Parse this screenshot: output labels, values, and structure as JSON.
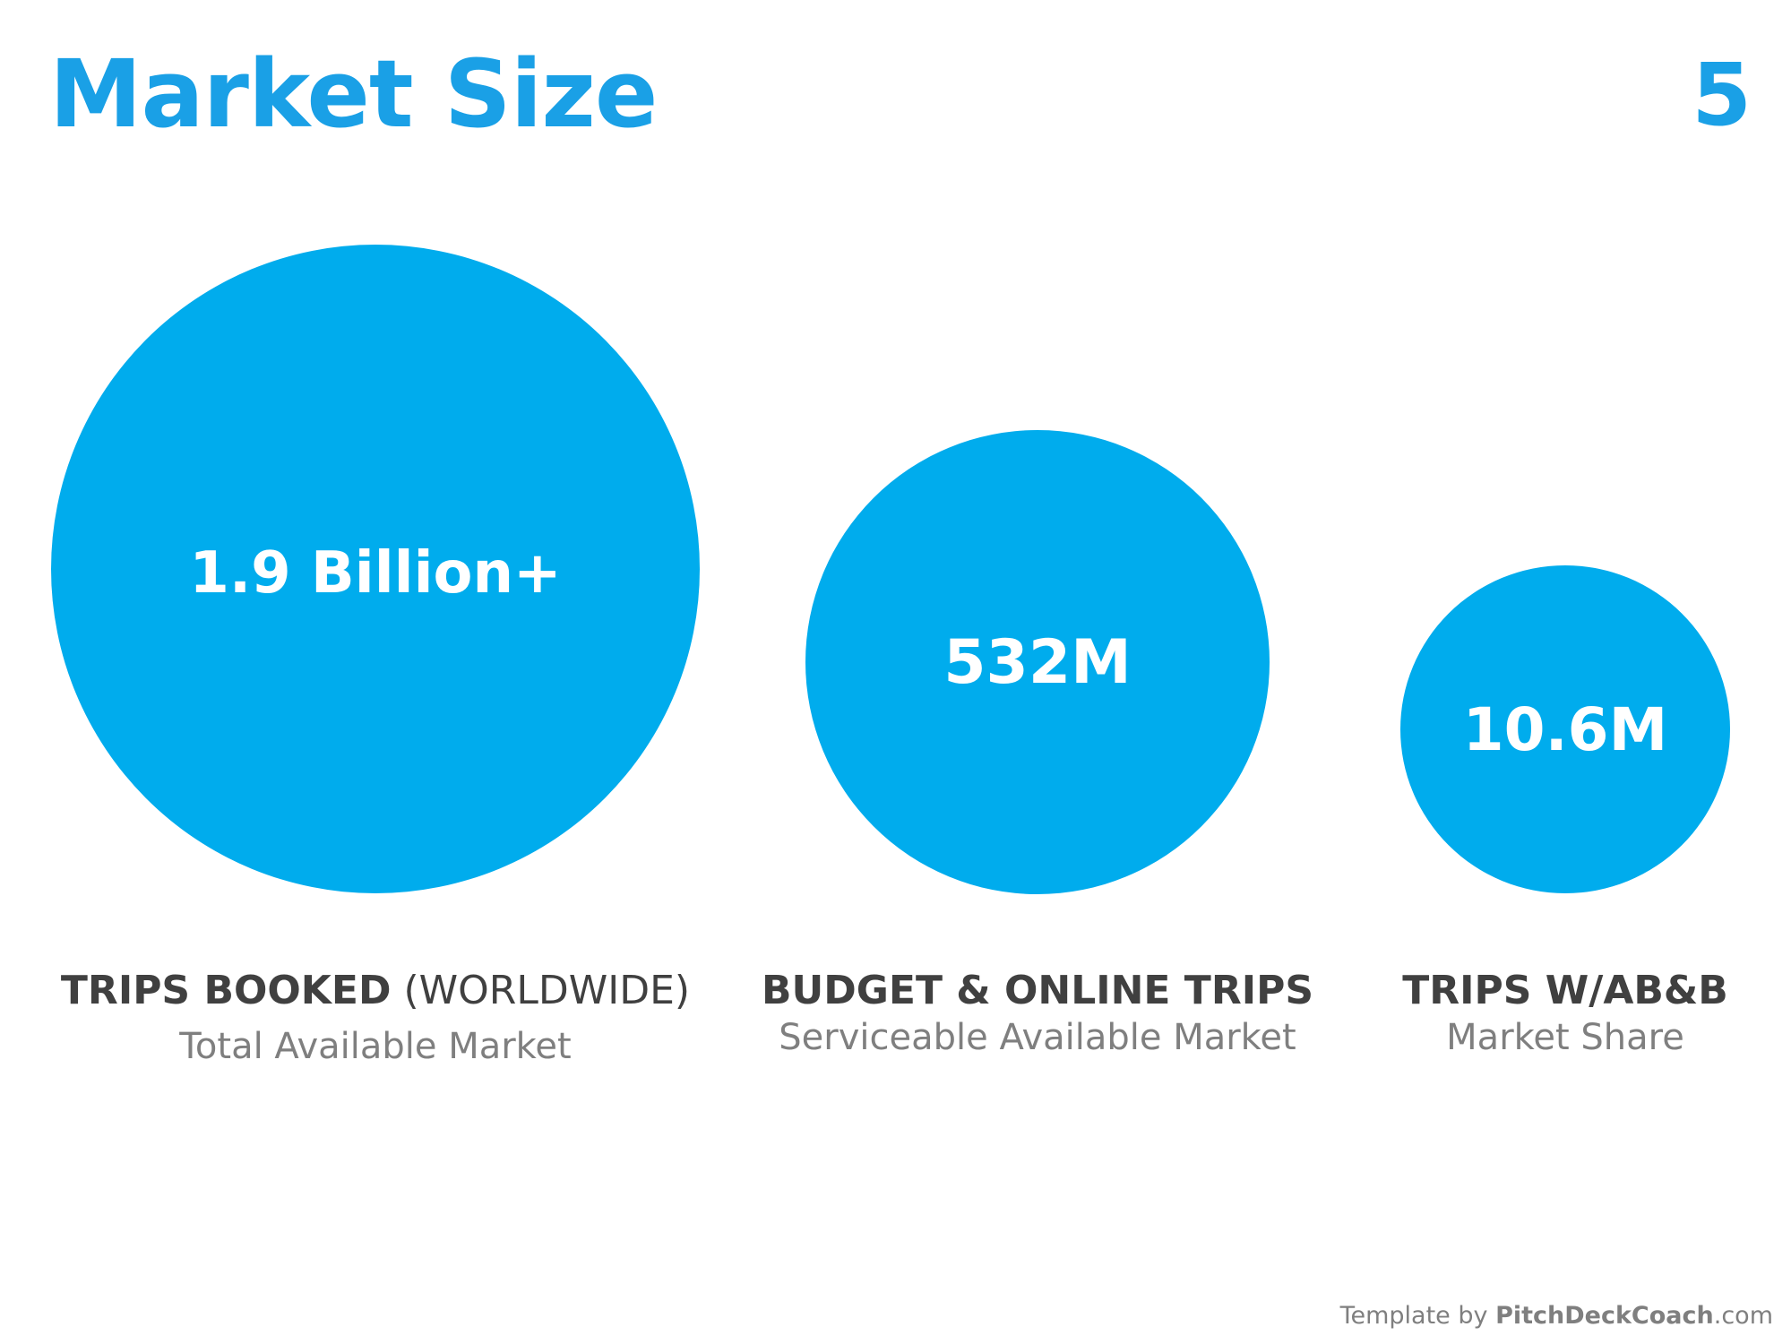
{
  "header": {
    "title": "Market Size",
    "page_number": "5"
  },
  "accent_color": "#00aced",
  "title_color": "#1aa0e6",
  "markets": [
    {
      "value": "1.9 Billion+",
      "label_bold": "TRIPS BOOKED",
      "label_normal": " (WORLDWIDE)",
      "subtitle": "Total Available Market"
    },
    {
      "value": "532M",
      "label_bold": "BUDGET & ONLINE TRIPS",
      "label_normal": "",
      "subtitle": "Serviceable Available Market"
    },
    {
      "value": "10.6M",
      "label_bold": "TRIPS W/AB&B",
      "label_normal": "",
      "subtitle": "Market Share"
    }
  ],
  "footer": {
    "prefix": "Template by ",
    "brand": "PitchDeckCoach",
    "suffix": ".com"
  }
}
